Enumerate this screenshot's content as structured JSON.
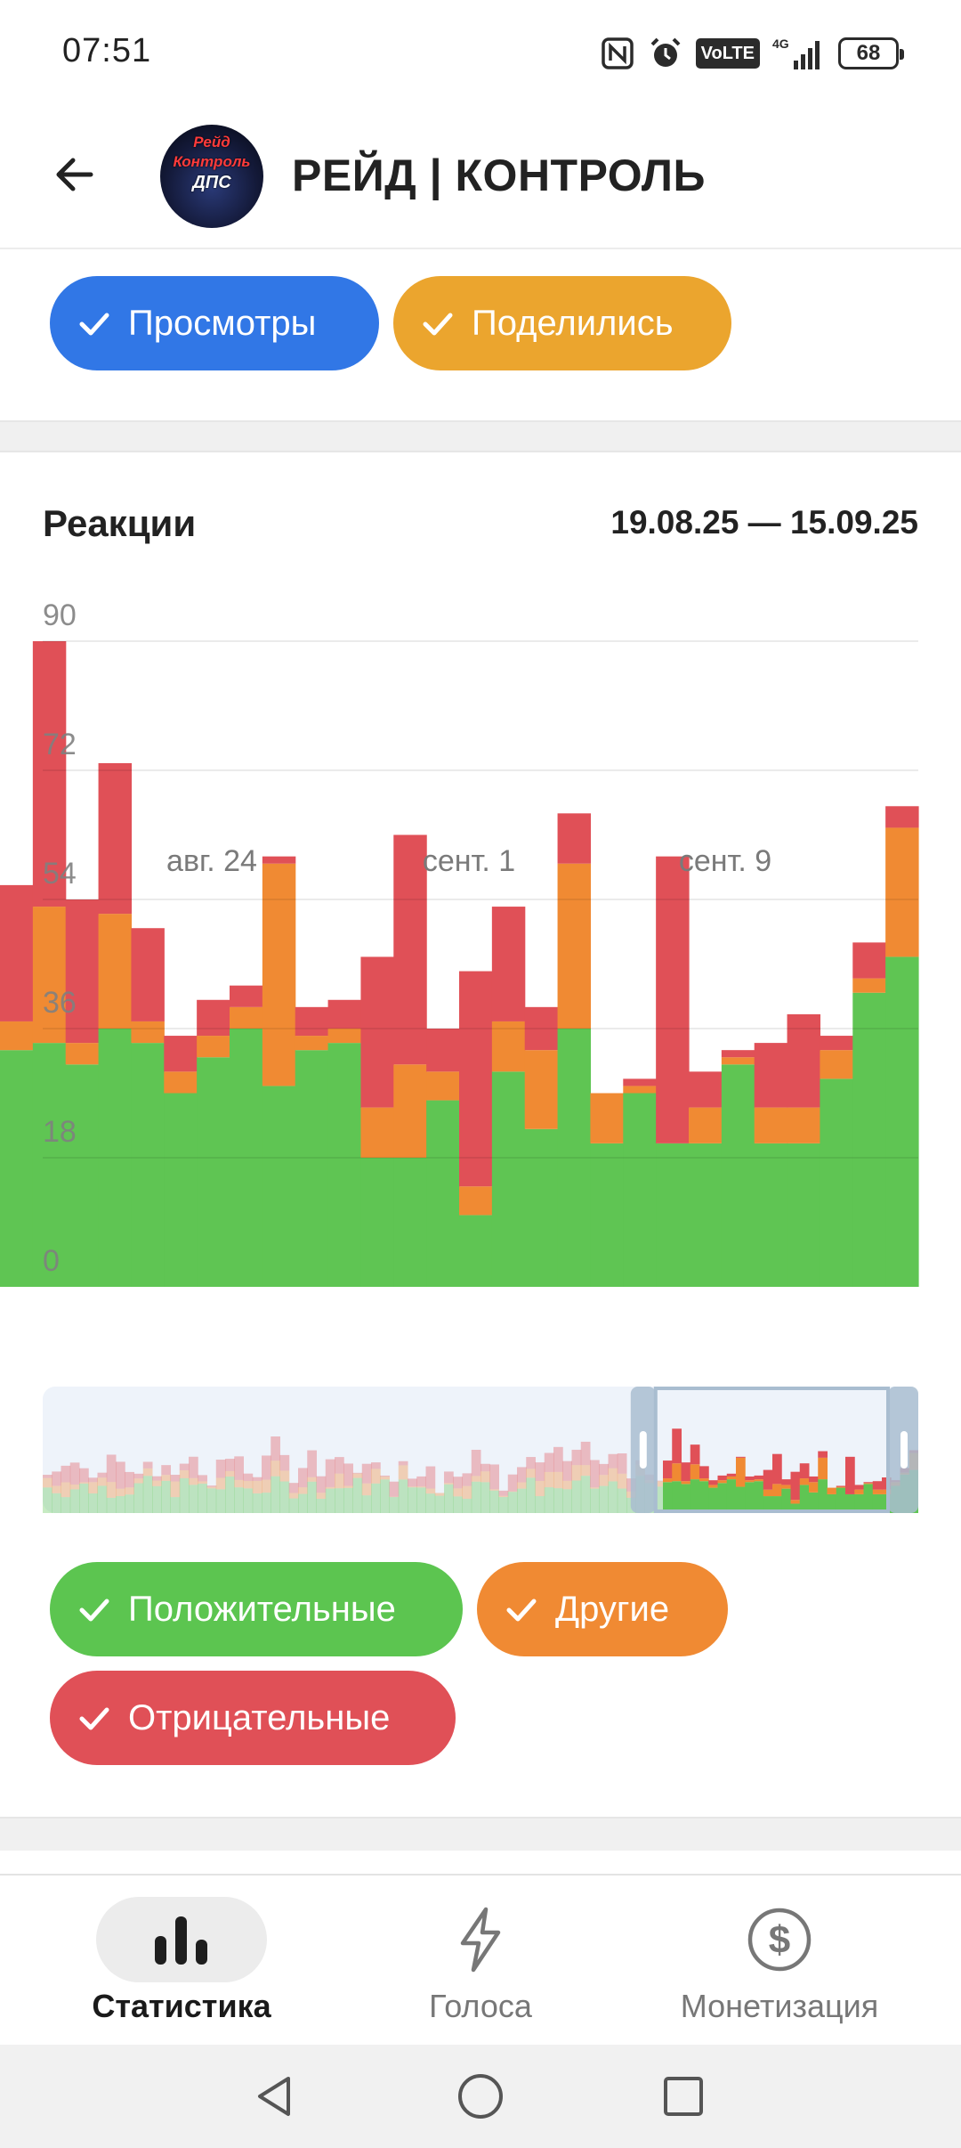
{
  "status_bar": {
    "time": "07:51",
    "battery": "68",
    "volte": "VoLTE",
    "network": "4G"
  },
  "header": {
    "back_icon": "arrow-left-icon",
    "avatar_lines": [
      "Рейд",
      "Контроль",
      "ДПС"
    ],
    "title": "РЕЙД | КОНТРОЛЬ"
  },
  "top_filters": [
    {
      "label": "Просмотры",
      "color": "#3177e6",
      "checked": true
    },
    {
      "label": "Поделились",
      "color": "#eba52e",
      "checked": true
    }
  ],
  "reactions": {
    "title": "Реакции",
    "date_range": "19.08.25 — 15.09.25"
  },
  "chart_data": {
    "type": "bar",
    "stacked": true,
    "ylim": [
      0,
      90
    ],
    "yticks": [
      "90",
      "72",
      "54",
      "36",
      "18",
      "0"
    ],
    "xticks": [
      "авг. 24",
      "сент. 1",
      "сент. 9"
    ],
    "x": [
      "19.08",
      "20.08",
      "21.08",
      "22.08",
      "23.08",
      "24.08",
      "25.08",
      "26.08",
      "27.08",
      "28.08",
      "29.08",
      "30.08",
      "31.08",
      "01.09",
      "02.09",
      "03.09",
      "04.09",
      "05.09",
      "06.09",
      "07.09",
      "08.09",
      "09.09",
      "10.09",
      "11.09",
      "12.09",
      "13.09",
      "14.09",
      "15.09"
    ],
    "series": [
      {
        "name": "Положительные",
        "color": "#5fc553",
        "values": [
          33,
          34,
          31,
          36,
          34,
          27,
          32,
          36,
          28,
          33,
          34,
          18,
          18,
          26,
          10,
          30,
          22,
          36,
          20,
          27,
          20,
          20,
          31,
          20,
          20,
          29,
          41,
          46
        ]
      },
      {
        "name": "Другие",
        "color": "#f08a33",
        "values": [
          4,
          19,
          3,
          16,
          3,
          3,
          3,
          3,
          31,
          2,
          2,
          7,
          13,
          4,
          4,
          7,
          11,
          23,
          7,
          1,
          0,
          5,
          1,
          5,
          5,
          4,
          2,
          18
        ]
      },
      {
        "name": "Отрицательные",
        "color": "#e05057",
        "values": [
          19,
          37,
          20,
          21,
          13,
          5,
          5,
          3,
          1,
          4,
          4,
          21,
          32,
          6,
          30,
          16,
          6,
          7,
          0,
          1,
          40,
          5,
          1,
          9,
          13,
          2,
          5,
          3
        ]
      }
    ],
    "legend": "bottom",
    "grid": true
  },
  "navigator": {
    "window_start": 0.7,
    "window_end": 1.0
  },
  "series_filters": [
    {
      "label": "Положительные",
      "color": "#5cc550",
      "checked": true
    },
    {
      "label": "Другие",
      "color": "#f08a33",
      "checked": true
    },
    {
      "label": "Отрицательные",
      "color": "#e05057",
      "checked": true
    }
  ],
  "bottom_nav": [
    {
      "label": "Статистика",
      "icon": "bar-chart-icon",
      "active": true
    },
    {
      "label": "Голоса",
      "icon": "lightning-icon",
      "active": false
    },
    {
      "label": "Монетизация",
      "icon": "dollar-circle-icon",
      "active": false
    }
  ],
  "system_nav": [
    "back-triangle-icon",
    "home-circle-icon",
    "recents-square-icon"
  ]
}
